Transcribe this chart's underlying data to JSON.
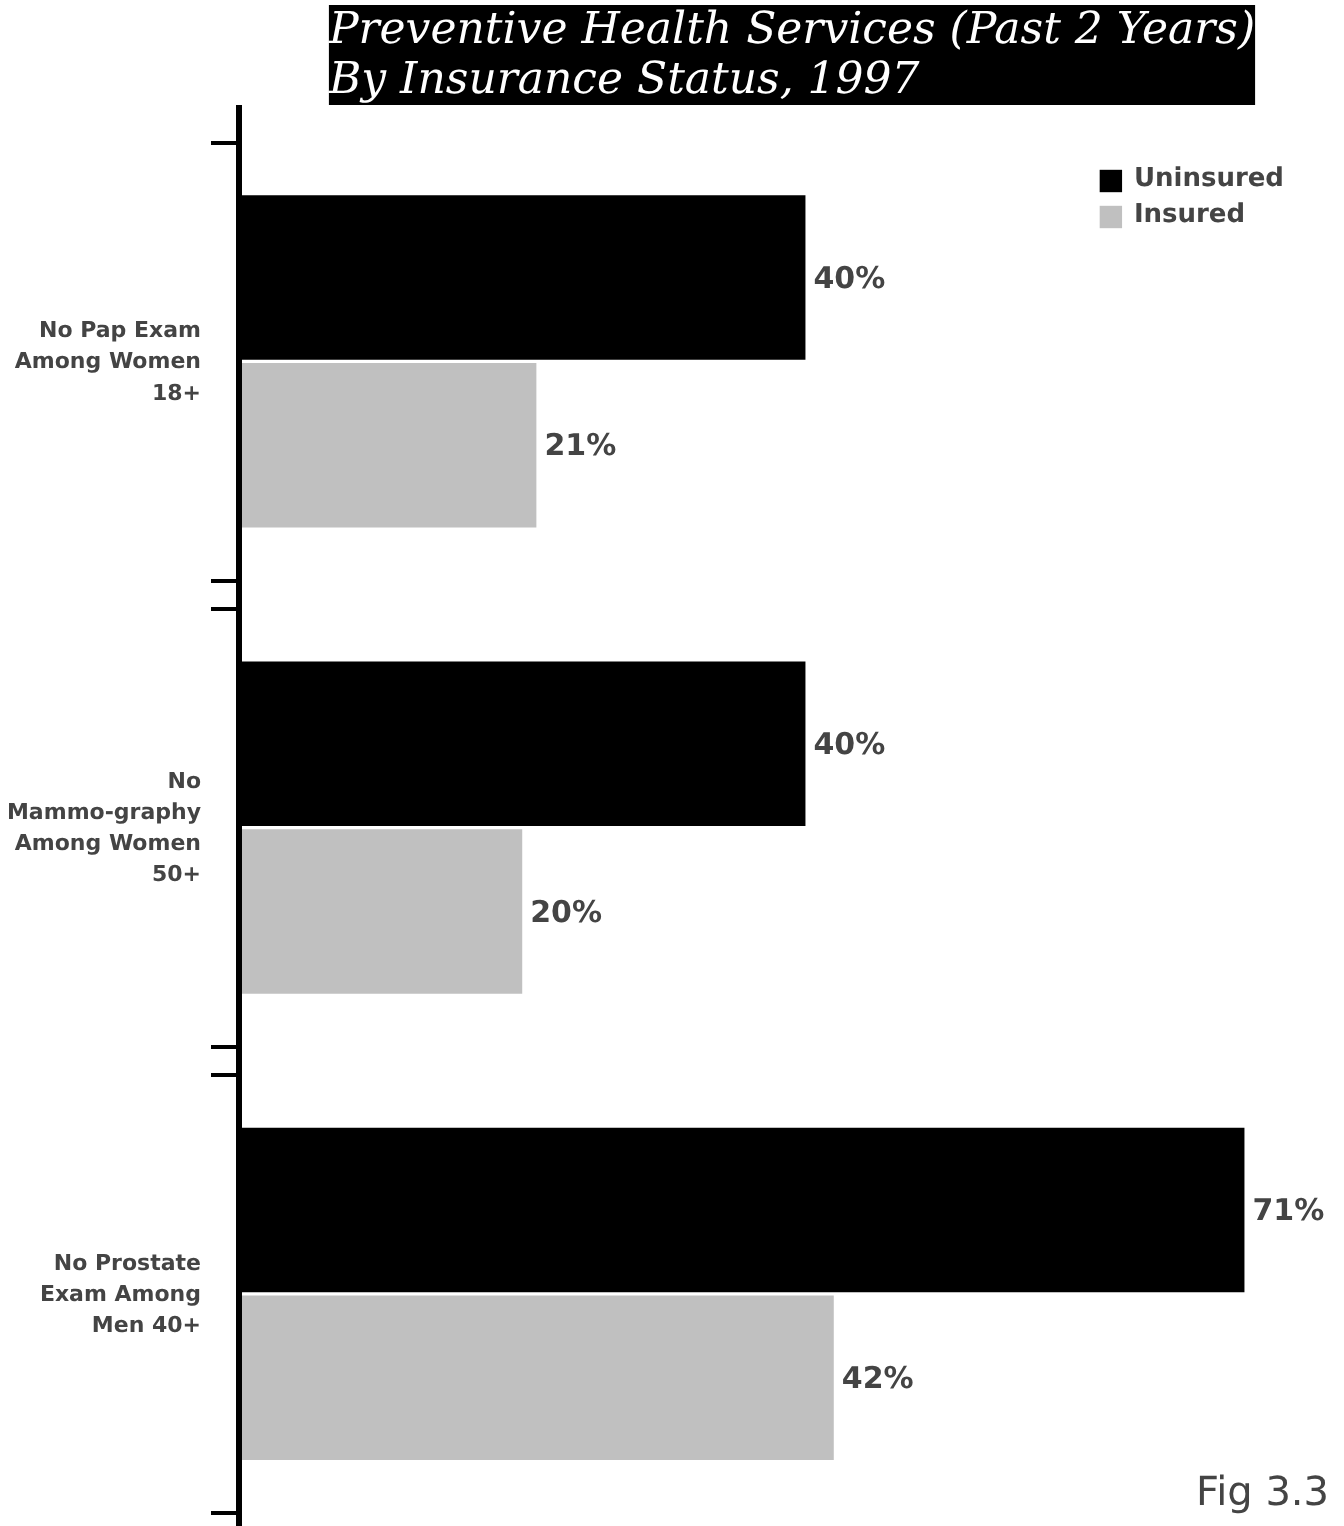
{
  "chart_data": {
    "type": "bar",
    "orientation": "horizontal",
    "title": "Preventive Health Services (Past 2 Years) By Insurance Status, 1997",
    "categories": [
      "No Pap Exam Among Women 18+",
      "No Mammo-graphy Among Women 50+",
      "No Prostate Exam Among Men 40+"
    ],
    "series": [
      {
        "name": "Uninsured",
        "color": "#000000",
        "values": [
          40,
          40,
          71
        ],
        "value_labels": [
          "40%",
          "40%",
          "71%"
        ]
      },
      {
        "name": "Insured",
        "color": "#c0c0c0",
        "values": [
          21,
          20,
          42
        ],
        "value_labels": [
          "21%",
          "20%",
          "42%"
        ]
      }
    ],
    "grid": false,
    "legend": "top right",
    "tick_labels": "y",
    "annotations": [
      "Fig 3.3"
    ]
  }
}
